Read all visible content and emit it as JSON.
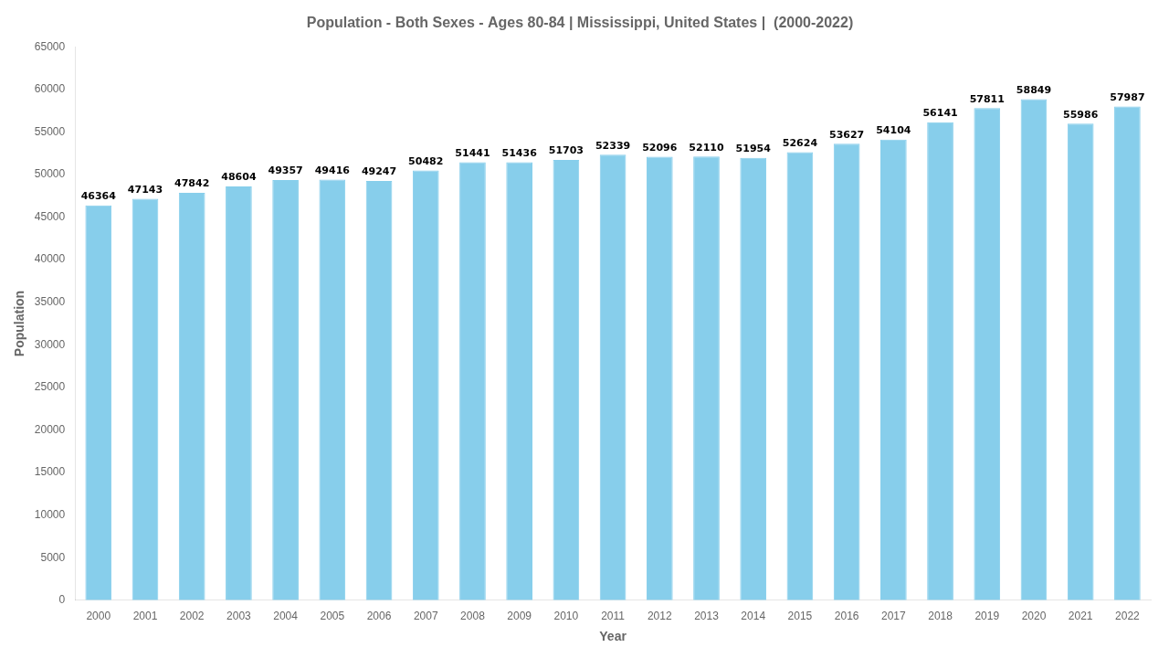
{
  "chart_data": {
    "type": "bar",
    "title": "Population - Both Sexes - Ages 80-84 | Mississippi, United States |  (2000-2022)",
    "x_label": "Year",
    "y_label": "Population",
    "categories": [
      "2000",
      "2001",
      "2002",
      "2003",
      "2004",
      "2005",
      "2006",
      "2007",
      "2008",
      "2009",
      "2010",
      "2011",
      "2012",
      "2013",
      "2014",
      "2015",
      "2016",
      "2017",
      "2018",
      "2019",
      "2020",
      "2021",
      "2022"
    ],
    "values": [
      46364,
      47143,
      47842,
      48604,
      49357,
      49416,
      49247,
      50482,
      51441,
      51436,
      51703,
      52339,
      52096,
      52110,
      51954,
      52624,
      53627,
      54104,
      56141,
      57811,
      58849,
      55986,
      57987
    ],
    "color": "#87CEEB",
    "ylim": [
      0,
      65000
    ],
    "yticks": [
      0,
      5000,
      10000,
      15000,
      20000,
      25000,
      30000,
      35000,
      40000,
      45000,
      50000,
      55000,
      60000,
      65000
    ],
    "grid": false,
    "data_labels": true
  }
}
